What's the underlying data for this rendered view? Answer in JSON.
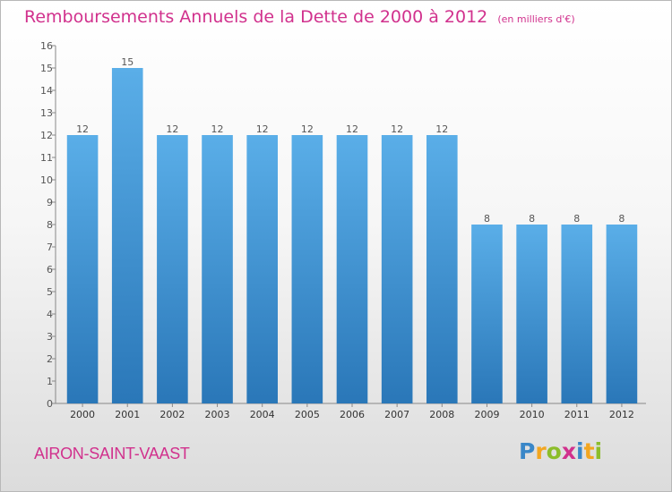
{
  "chart_data": {
    "type": "bar",
    "title": "Remboursements Annuels de la Dette de 2000 à 2012",
    "subtitle": "(en milliers d'€)",
    "categories": [
      "2000",
      "2001",
      "2002",
      "2003",
      "2004",
      "2005",
      "2006",
      "2007",
      "2008",
      "2009",
      "2010",
      "2011",
      "2012"
    ],
    "values": [
      12,
      15,
      12,
      12,
      12,
      12,
      12,
      12,
      12,
      8,
      8,
      8,
      8
    ],
    "ylim": [
      0,
      16
    ],
    "yticks": [
      0,
      1,
      2,
      3,
      4,
      5,
      6,
      7,
      8,
      9,
      10,
      11,
      12,
      13,
      14,
      15,
      16
    ],
    "grid": false,
    "bar_color": "#3e93d6",
    "label_color": "#555555"
  },
  "location": "AIRON-SAINT-VAAST",
  "brand": {
    "letters": [
      "P",
      "r",
      "o",
      "x",
      "i",
      "t",
      "i"
    ],
    "colors": [
      "#3a87c8",
      "#f3a620",
      "#8cbd2a",
      "#d1318d",
      "#3a87c8",
      "#f3a620",
      "#8cbd2a"
    ]
  }
}
